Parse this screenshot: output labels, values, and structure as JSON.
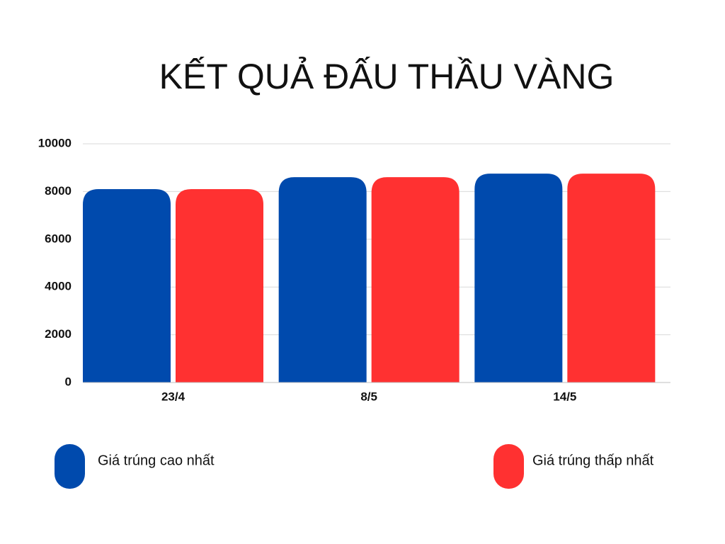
{
  "chart_data": {
    "type": "bar",
    "title": "KẾT QUẢ ĐẤU THẦU VÀNG",
    "categories": [
      "23/4",
      "8/5",
      "14/5"
    ],
    "series": [
      {
        "name": "Giá trúng cao nhất",
        "color": "#004aad",
        "values": [
          8100,
          8600,
          8750
        ]
      },
      {
        "name": "Giá trúng thấp nhất",
        "color": "#ff3131",
        "values": [
          8100,
          8600,
          8750
        ]
      }
    ],
    "ylim": [
      0,
      10000
    ],
    "yticks": [
      0,
      2000,
      4000,
      6000,
      8000,
      10000
    ],
    "grid": true
  }
}
